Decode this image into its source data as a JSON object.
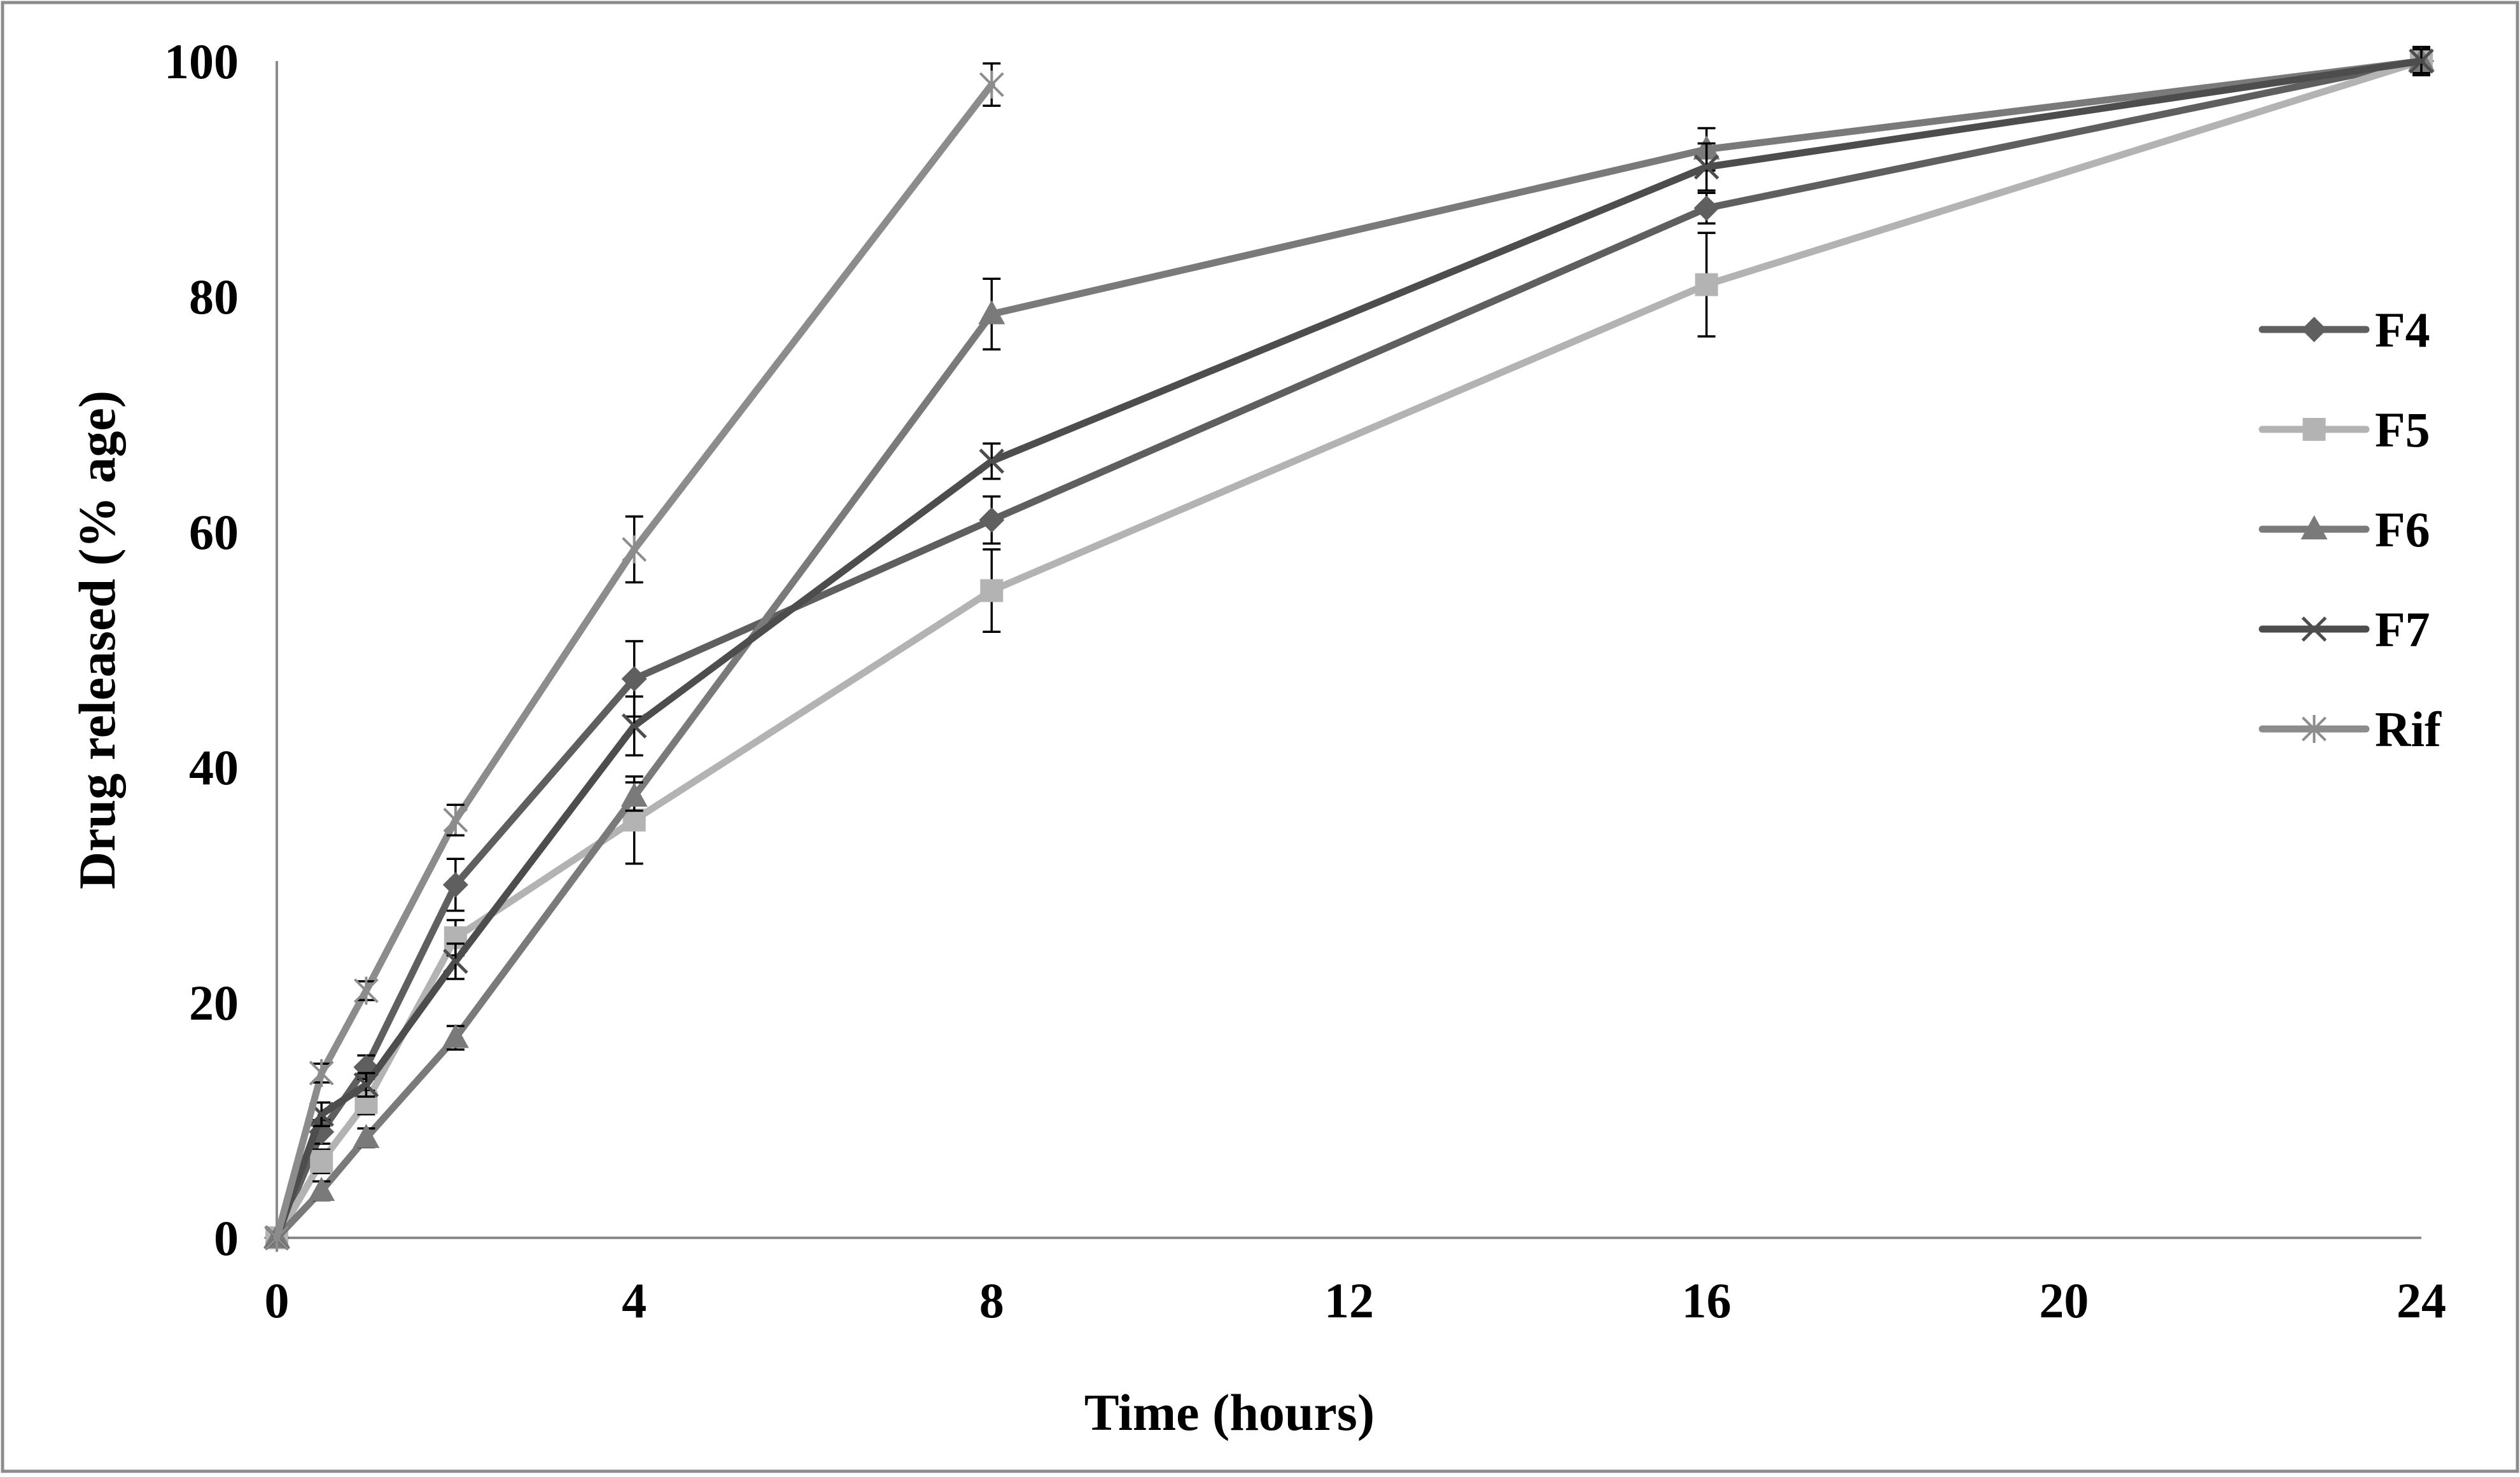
{
  "chart_data": {
    "type": "line",
    "title": "",
    "xlabel": "Time (hours)",
    "ylabel": "Drug released (% age)",
    "xlim": [
      0,
      24
    ],
    "ylim": [
      0,
      100
    ],
    "x_ticks": [
      0,
      4,
      8,
      12,
      16,
      20,
      24
    ],
    "y_ticks": [
      0,
      20,
      40,
      60,
      80,
      100
    ],
    "x_tick_labels": [
      "0",
      "4",
      "8",
      "12",
      "16",
      "20",
      "24"
    ],
    "y_tick_labels": [
      "0",
      "20",
      "40",
      "60",
      "80",
      "100"
    ],
    "grid": false,
    "legend_position": "right",
    "series": [
      {
        "name": "F4",
        "color": "#5f5f5f",
        "marker": "diamond",
        "x": [
          0,
          0.5,
          1,
          2,
          4,
          8,
          16,
          24
        ],
        "y": [
          0,
          9,
          14.5,
          30,
          47.5,
          61,
          87.5,
          100
        ],
        "err": [
          0,
          1,
          1,
          2.2,
          3.2,
          2,
          1.3,
          1
        ]
      },
      {
        "name": "F5",
        "color": "#b3b3b3",
        "marker": "square",
        "x": [
          0,
          0.5,
          1,
          2,
          4,
          8,
          16,
          24
        ],
        "y": [
          0,
          6.5,
          11.5,
          25.5,
          35.5,
          55,
          81,
          100
        ],
        "err": [
          0,
          1,
          1,
          1.5,
          3.7,
          3.5,
          4.4,
          1
        ]
      },
      {
        "name": "F6",
        "color": "#7a7a7a",
        "marker": "triangle",
        "x": [
          0,
          0.5,
          1,
          2,
          4,
          8,
          16,
          24
        ],
        "y": [
          0,
          4,
          8.5,
          17,
          37.5,
          78.5,
          92.5,
          100
        ],
        "err": [
          0,
          0.8,
          0.8,
          1,
          1.2,
          3,
          1.8,
          1.2
        ]
      },
      {
        "name": "F7",
        "color": "#4d4d4d",
        "marker": "x",
        "x": [
          0,
          0.5,
          1,
          2,
          4,
          8,
          16,
          24
        ],
        "y": [
          0,
          10.5,
          13,
          23.5,
          43.5,
          66,
          91,
          100
        ],
        "err": [
          0,
          1,
          1,
          1.5,
          2.5,
          1.5,
          2,
          1
        ]
      },
      {
        "name": "Rif",
        "color": "#8c8c8c",
        "marker": "star",
        "x": [
          0,
          0.5,
          1,
          2,
          4,
          8
        ],
        "y": [
          0,
          14,
          21,
          35.5,
          58.5,
          98
        ],
        "err": [
          0,
          0.8,
          0.8,
          1.3,
          2.8,
          1.8
        ]
      }
    ]
  }
}
